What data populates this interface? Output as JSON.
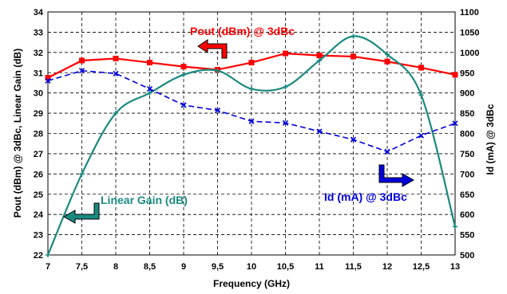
{
  "chart_data": {
    "type": "line",
    "x": [
      7,
      7.5,
      8,
      8.5,
      9,
      9.5,
      10,
      10.5,
      11,
      11.5,
      12,
      12.5,
      13
    ],
    "x_tick_labels": [
      "7",
      "7,5",
      "8",
      "8,5",
      "9",
      "9,5",
      "10",
      "10,5",
      "11",
      "11,5",
      "12",
      "12,5",
      "13"
    ],
    "xlabel": "Frequency (GHz)",
    "ylabel_left": "Pout (dBm) @ 3dBc, Linear  Gain (dB)",
    "ylabel_right": "Id (mA) @ 3dBc",
    "ylim_left": [
      22,
      34
    ],
    "ylim_right": [
      500,
      1100
    ],
    "y_ticks_left": [
      "22",
      "23",
      "24",
      "25",
      "26",
      "27",
      "28",
      "29",
      "30",
      "31",
      "32",
      "33",
      "34"
    ],
    "y_ticks_right": [
      "500",
      "550",
      "600",
      "650",
      "700",
      "750",
      "800",
      "850",
      "900",
      "950",
      "1000",
      "1050",
      "1100"
    ],
    "grid": true,
    "series": [
      {
        "name": "Pout (dBm) @ 3dBc",
        "axis": "left",
        "color": "#ff0000",
        "style": "solid",
        "values": [
          30.75,
          31.6,
          31.7,
          31.5,
          31.3,
          31.15,
          31.5,
          31.95,
          31.85,
          31.8,
          31.55,
          31.25,
          30.9
        ]
      },
      {
        "name": "Linear Gain (dB)",
        "axis": "left",
        "color": "#1a8a80",
        "style": "solid-smooth",
        "values": [
          22.0,
          26.0,
          29.0,
          30.0,
          30.9,
          31.1,
          30.2,
          30.3,
          31.6,
          32.8,
          31.9,
          29.9,
          23.4
        ]
      },
      {
        "name": "Id (mA) @ 3dBc",
        "axis": "right",
        "color": "#0000dd",
        "style": "dashed",
        "values": [
          930,
          955,
          948,
          910,
          870,
          857,
          830,
          826,
          805,
          785,
          755,
          795,
          825
        ]
      }
    ],
    "annotations": {
      "pout_label": "Pout (dBm) @ 3dBc",
      "gain_label": "Linear Gain (dB)",
      "id_label": "Id (mA) @ 3dBc"
    }
  }
}
